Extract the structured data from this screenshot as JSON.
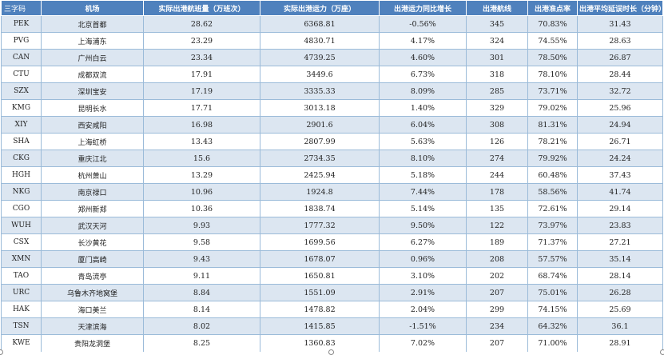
{
  "table": {
    "headers": [
      "三字码",
      "机场",
      "实际出港航班量（万班次）",
      "实际出港运力（万座）",
      "出港运力同比增长",
      "出港航线",
      "出港准点率",
      "出港平均延误时长（分钟）"
    ],
    "rows": [
      [
        "PEK",
        "北京首都",
        "28.62",
        "6368.81",
        "-0.56%",
        "345",
        "70.83%",
        "31.43"
      ],
      [
        "PVG",
        "上海浦东",
        "23.29",
        "4830.71",
        "4.17%",
        "324",
        "74.55%",
        "28.63"
      ],
      [
        "CAN",
        "广州白云",
        "23.34",
        "4739.25",
        "4.60%",
        "301",
        "78.50%",
        "26.87"
      ],
      [
        "CTU",
        "成都双流",
        "17.91",
        "3449.6",
        "6.73%",
        "318",
        "78.10%",
        "28.44"
      ],
      [
        "SZX",
        "深圳宝安",
        "17.19",
        "3335.33",
        "8.09%",
        "285",
        "73.71%",
        "32.72"
      ],
      [
        "KMG",
        "昆明长水",
        "17.71",
        "3013.18",
        "1.40%",
        "329",
        "79.02%",
        "25.96"
      ],
      [
        "XIY",
        "西安咸阳",
        "16.98",
        "2901.6",
        "6.04%",
        "308",
        "81.31%",
        "24.94"
      ],
      [
        "SHA",
        "上海虹桥",
        "13.43",
        "2807.99",
        "5.63%",
        "126",
        "78.21%",
        "26.71"
      ],
      [
        "CKG",
        "重庆江北",
        "15.6",
        "2734.35",
        "8.10%",
        "274",
        "79.92%",
        "24.24"
      ],
      [
        "HGH",
        "杭州萧山",
        "13.29",
        "2425.94",
        "5.18%",
        "244",
        "60.48%",
        "37.43"
      ],
      [
        "NKG",
        "南京禄口",
        "10.96",
        "1924.8",
        "7.44%",
        "178",
        "58.56%",
        "41.74"
      ],
      [
        "CGO",
        "郑州新郑",
        "10.36",
        "1838.74",
        "5.14%",
        "135",
        "72.61%",
        "29.14"
      ],
      [
        "WUH",
        "武汉天河",
        "9.93",
        "1777.32",
        "9.50%",
        "122",
        "73.97%",
        "23.83"
      ],
      [
        "CSX",
        "长沙黄花",
        "9.58",
        "1699.56",
        "6.27%",
        "189",
        "71.37%",
        "27.21"
      ],
      [
        "XMN",
        "厦门高崎",
        "9.43",
        "1678.07",
        "0.96%",
        "208",
        "57.57%",
        "35.14"
      ],
      [
        "TAO",
        "青岛流亭",
        "9.11",
        "1650.81",
        "3.10%",
        "202",
        "68.74%",
        "28.14"
      ],
      [
        "URC",
        "乌鲁木齐地窝堡",
        "8.84",
        "1551.09",
        "2.91%",
        "207",
        "75.01%",
        "26.28"
      ],
      [
        "HAK",
        "海口美兰",
        "8.14",
        "1478.82",
        "2.04%",
        "299",
        "74.15%",
        "25.69"
      ],
      [
        "TSN",
        "天津滨海",
        "8.02",
        "1415.85",
        "-1.51%",
        "234",
        "64.32%",
        "36.1"
      ],
      [
        "KWE",
        "贵阳龙洞堡",
        "8.25",
        "1360.83",
        "7.02%",
        "207",
        "71.00%",
        "28.91"
      ]
    ]
  },
  "colors": {
    "header_bg": "#4f81bd",
    "header_text": "#ffffff",
    "band_row_bg": "#dce6f1",
    "plain_row_bg": "#ffffff",
    "grid_line": "#9bbbd9"
  }
}
